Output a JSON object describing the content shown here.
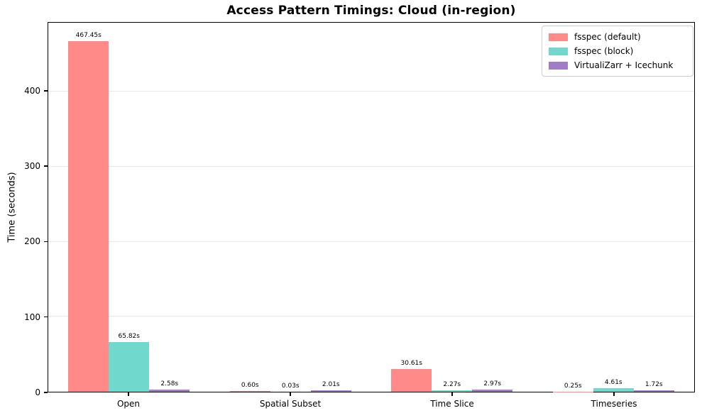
{
  "title": "Access Pattern Timings: Cloud (in-region)",
  "chart_data": {
    "type": "bar",
    "title": "Access Pattern Timings: Cloud (in-region)",
    "xlabel": "",
    "ylabel": "Time (seconds)",
    "categories": [
      "Open",
      "Spatial Subset",
      "Time Slice",
      "Timeseries"
    ],
    "series": [
      {
        "name": "fsspec (default)",
        "color": "#FF8A87",
        "values": [
          467.45,
          0.6,
          30.61,
          0.25
        ]
      },
      {
        "name": "fsspec (block)",
        "color": "#71D8CD",
        "values": [
          65.82,
          0.03,
          2.27,
          4.61
        ]
      },
      {
        "name": "VirtualiZarr + Icechunk",
        "color": "#A17CC9",
        "values": [
          2.58,
          2.01,
          2.97,
          1.72
        ]
      }
    ],
    "bar_labels": [
      [
        "467.45s",
        "0.60s",
        "30.61s",
        "0.25s"
      ],
      [
        "65.82s",
        "0.03s",
        "2.27s",
        "4.61s"
      ],
      [
        "2.58s",
        "2.01s",
        "2.97s",
        "1.72s"
      ]
    ],
    "ylim": [
      0,
      491
    ],
    "yticks": [
      0,
      100,
      200,
      300,
      400
    ],
    "grid": true,
    "legend_position": "upper right",
    "colors": {
      "spine": "#000000",
      "gridline": "#e9e9e9",
      "background": "#ffffff",
      "legend_border": "#cccccc"
    }
  }
}
